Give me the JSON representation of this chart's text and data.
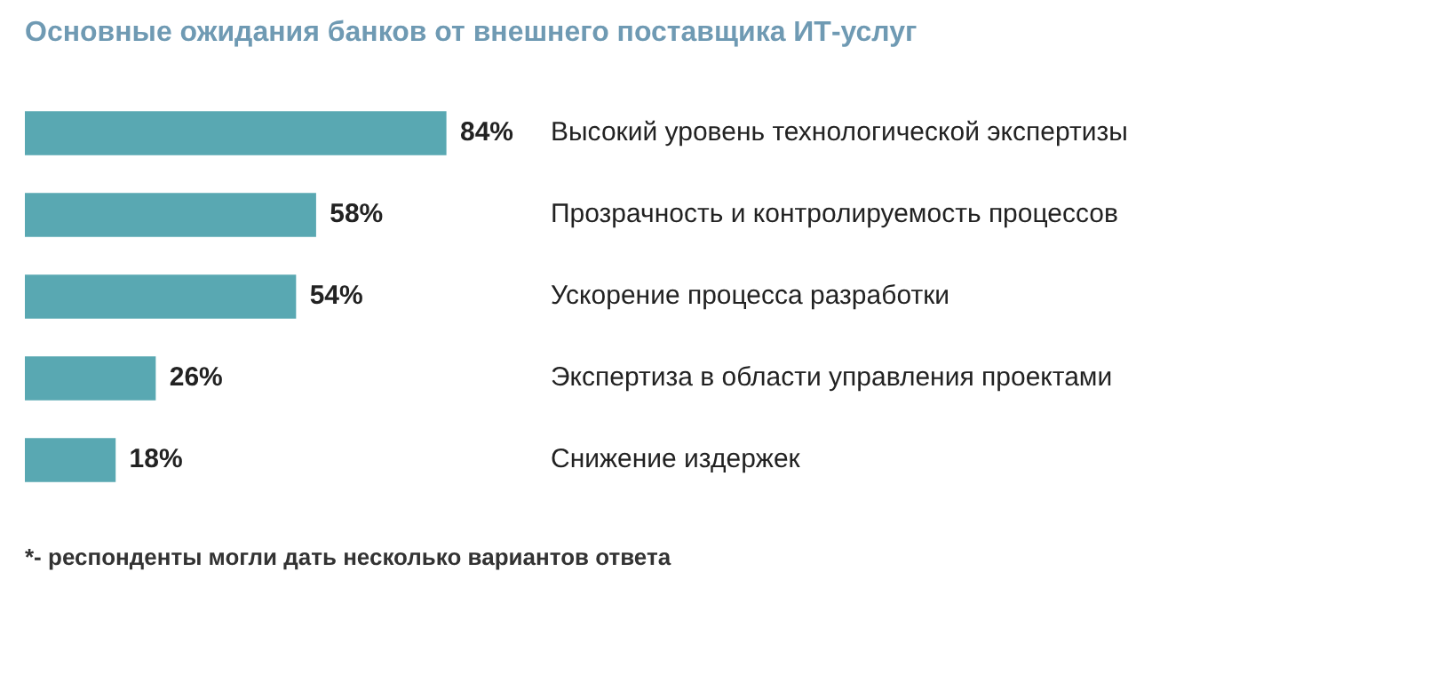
{
  "chart_data": {
    "type": "bar",
    "orientation": "horizontal",
    "title": "Основные ожидания банков от внешнего поставщика ИТ-услуг",
    "categories": [
      "Высокий уровень технологической экспертизы",
      "Прозрачность и контролируемость процессов",
      "Ускорение процесса разработки",
      "Экспертиза в области управления проектами",
      "Снижение издержек"
    ],
    "values": [
      84,
      58,
      54,
      26,
      18
    ],
    "value_labels": [
      "84%",
      "58%",
      "54%",
      "26%",
      "18%"
    ],
    "color": "#59a8b2",
    "legend": false,
    "tick_labels": false,
    "annotations": [
      "*- респонденты могли дать несколько вариантов ответа"
    ]
  }
}
